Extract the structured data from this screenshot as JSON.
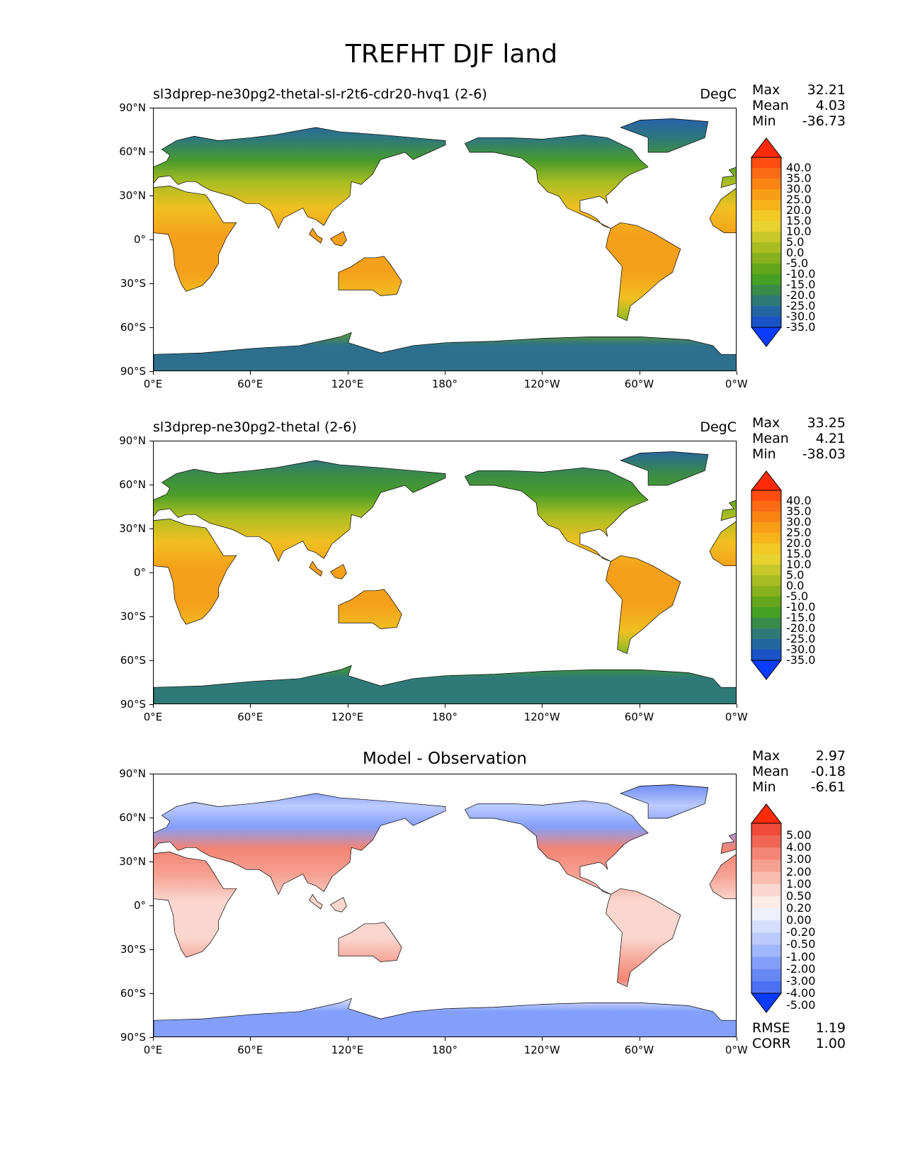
{
  "title": "TREFHT DJF land",
  "lat_labels": [
    "90°N",
    "60°N",
    "30°N",
    "0°",
    "30°S",
    "60°S",
    "90°S"
  ],
  "lon_labels": [
    "0°E",
    "60°E",
    "120°E",
    "180°",
    "120°W",
    "60°W",
    "0°W"
  ],
  "panels": [
    {
      "title": "sl3dprep-ne30pg2-thetal-sl-r2t6-cdr20-hvq1 (2-6)",
      "units": "DegC",
      "stats": {
        "max_label": "Max",
        "max": "32.21",
        "mean_label": "Mean",
        "mean": "4.03",
        "min_label": "Min",
        "min": "-36.73"
      },
      "colorbar_ticks": [
        "40.0",
        "35.0",
        "30.0",
        "25.0",
        "20.0",
        "15.0",
        "10.0",
        "5.0",
        "0.0",
        "-5.0",
        "-10.0",
        "-15.0",
        "-20.0",
        "-25.0",
        "-30.0",
        "-35.0"
      ],
      "colorbar_colors": [
        "#ff2a0a",
        "#ff4c10",
        "#fb6a14",
        "#f98414",
        "#f79d16",
        "#f6b31a",
        "#f2c825",
        "#e8d230",
        "#c8c82a",
        "#a8bd22",
        "#86b11c",
        "#63a61c",
        "#46a024",
        "#3a8a4a",
        "#2f7a78",
        "#2266a0",
        "#1a52c8",
        "#0a3cff"
      ],
      "map_colors": {
        "tropics": "#f5a01a",
        "subtropics": "#f0c020",
        "midlat": "#a8bd22",
        "highlat": "#4a9c2a",
        "cold": "#2f7a78",
        "verycold": "#2256c0",
        "antarctica": "#2d6f8c",
        "antarctica_coast": "#63a61c"
      }
    },
    {
      "title": "sl3dprep-ne30pg2-thetal (2-6)",
      "units": "DegC",
      "stats": {
        "max_label": "Max",
        "max": "33.25",
        "mean_label": "Mean",
        "mean": "4.21",
        "min_label": "Min",
        "min": "-38.03"
      },
      "colorbar_ticks": [
        "40.0",
        "35.0",
        "30.0",
        "25.0",
        "20.0",
        "15.0",
        "10.0",
        "5.0",
        "0.0",
        "-5.0",
        "-10.0",
        "-15.0",
        "-20.0",
        "-25.0",
        "-30.0",
        "-35.0"
      ],
      "colorbar_colors": [
        "#ff2a0a",
        "#ff4c10",
        "#fb6a14",
        "#f98414",
        "#f79d16",
        "#f6b31a",
        "#f2c825",
        "#e8d230",
        "#c8c82a",
        "#a8bd22",
        "#86b11c",
        "#63a61c",
        "#46a024",
        "#3a8a4a",
        "#2f7a78",
        "#2266a0",
        "#1a52c8",
        "#0a3cff"
      ],
      "map_colors": {
        "tropics": "#f5a01a",
        "subtropics": "#f0c020",
        "midlat": "#a8bd22",
        "highlat": "#4a9c2a",
        "cold": "#3a8a4a",
        "verycold": "#2256c0",
        "antarctica": "#2f7a78",
        "antarctica_coast": "#46a024"
      }
    },
    {
      "title": "Model - Observation",
      "units": "",
      "stats": {
        "max_label": "Max",
        "max": "2.97",
        "mean_label": "Mean",
        "mean": "-0.18",
        "min_label": "Min",
        "min": "-6.61"
      },
      "colorbar_ticks": [
        "5.00",
        "4.00",
        "3.00",
        "2.00",
        "1.00",
        "0.50",
        "0.20",
        "0.00",
        "-0.20",
        "-0.50",
        "-1.00",
        "-2.00",
        "-3.00",
        "-4.00",
        "-5.00"
      ],
      "colorbar_colors": [
        "#ff2a0a",
        "#f04a3a",
        "#f06656",
        "#f48474",
        "#f6a092",
        "#f8bcb0",
        "#fad6ce",
        "#fcece8",
        "#eef0fc",
        "#d6deff",
        "#bccafe",
        "#a0b6fd",
        "#849ffa",
        "#6888f6",
        "#4c70f2",
        "#0a3cff"
      ],
      "map_colors": {
        "tropics": "#fad6ce",
        "subtropics": "#f6a092",
        "midlat": "#f48474",
        "highlat": "#849ffa",
        "cold": "#bccafe",
        "verycold": "#4c70f2",
        "antarctica": "#849ffa",
        "antarctica_coast": "#eef0fc"
      },
      "rmse_label": "RMSE",
      "rmse": "1.19",
      "corr_label": "CORR",
      "corr": "1.00"
    }
  ]
}
